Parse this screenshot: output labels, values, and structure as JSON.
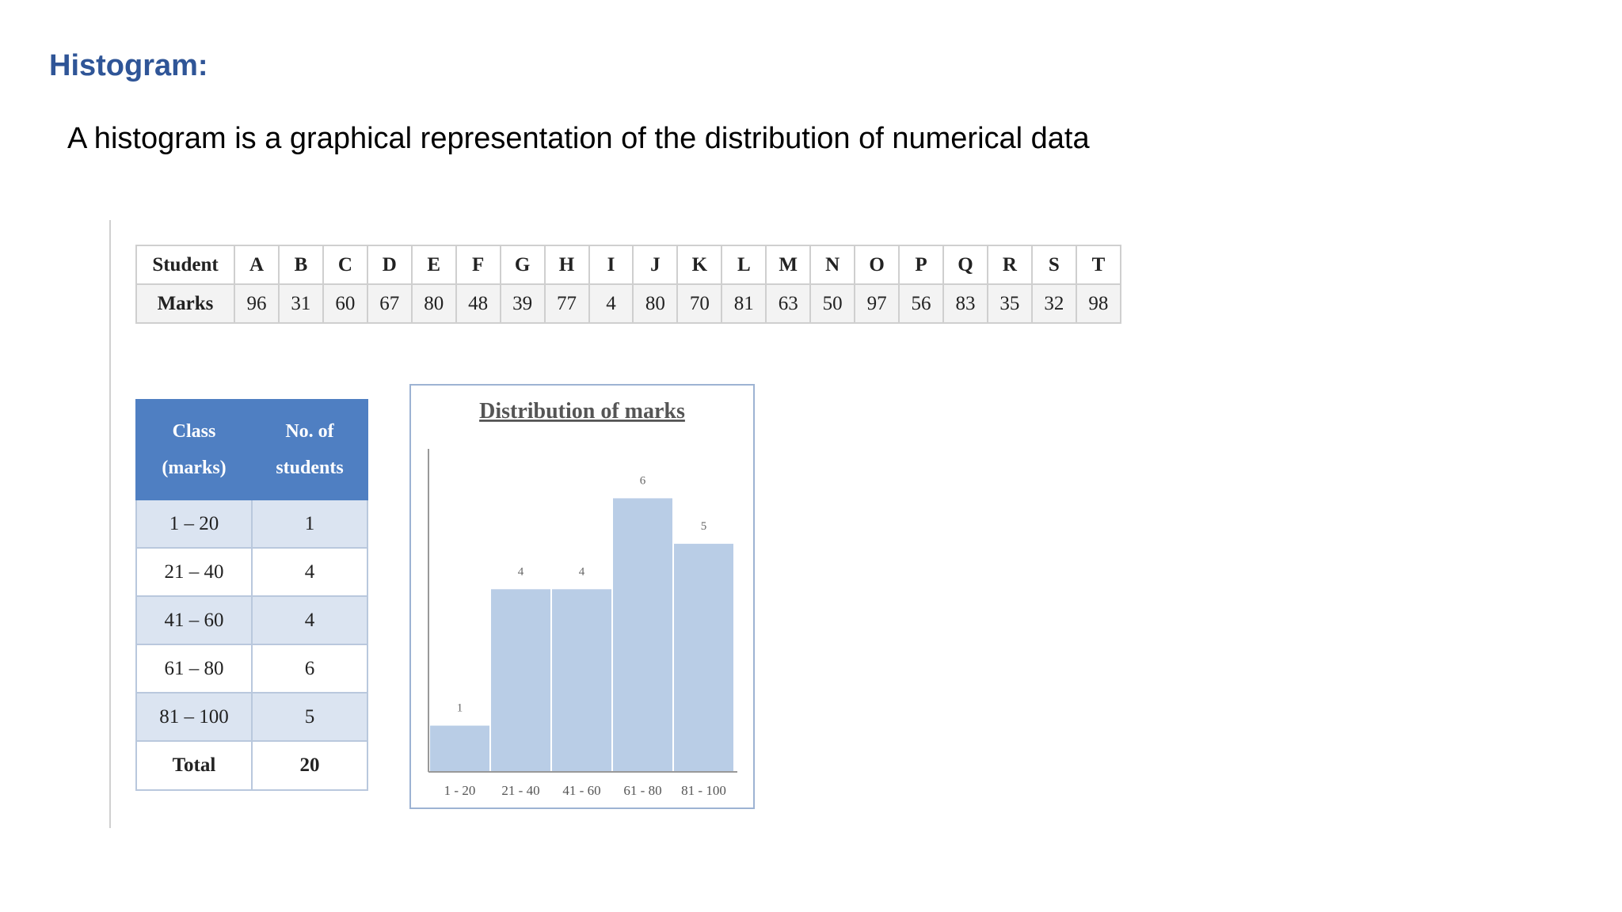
{
  "heading": "Histogram:",
  "intro": "A histogram is a graphical representation of the distribution of numerical data",
  "marks_table": {
    "student_label": "Student",
    "marks_label": "Marks",
    "students": [
      "A",
      "B",
      "C",
      "D",
      "E",
      "F",
      "G",
      "H",
      "I",
      "J",
      "K",
      "L",
      "M",
      "N",
      "O",
      "P",
      "Q",
      "R",
      "S",
      "T"
    ],
    "marks": [
      "96",
      "31",
      "60",
      "67",
      "80",
      "48",
      "39",
      "77",
      "4",
      "80",
      "70",
      "81",
      "63",
      "50",
      "97",
      "56",
      "83",
      "35",
      "32",
      "98"
    ]
  },
  "class_table": {
    "header_class_line1": "Class",
    "header_class_line2": "(marks)",
    "header_count_line1": "No. of",
    "header_count_line2": "students",
    "rows": [
      {
        "class": "1 – 20",
        "count": "1"
      },
      {
        "class": "21 – 40",
        "count": "4"
      },
      {
        "class": "41 – 60",
        "count": "4"
      },
      {
        "class": "61 – 80",
        "count": "6"
      },
      {
        "class": "81 – 100",
        "count": "5"
      }
    ],
    "total_label": "Total",
    "total_value": "20"
  },
  "chart_data": {
    "type": "bar",
    "title": "Distribution of marks",
    "categories": [
      "1 - 20",
      "21 - 40",
      "41 - 60",
      "61 - 80",
      "81 - 100"
    ],
    "values": [
      1,
      4,
      4,
      6,
      5
    ],
    "ylim": [
      0,
      7
    ],
    "grid": false,
    "bar_color": "#b9cde6",
    "xlabel": "",
    "ylabel": ""
  }
}
